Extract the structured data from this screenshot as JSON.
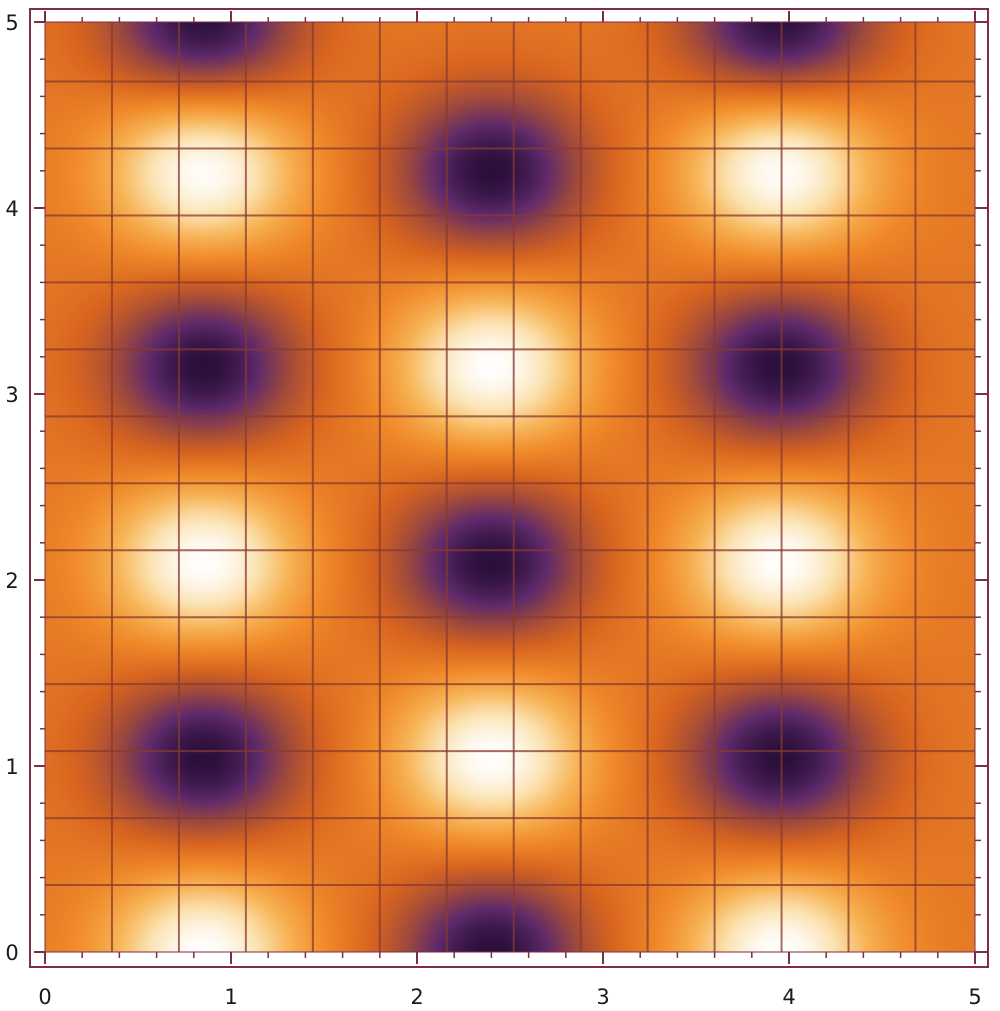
{
  "chart_data": {
    "type": "heatmap",
    "title": "",
    "xlabel": "",
    "ylabel": "",
    "xlim": [
      0,
      5
    ],
    "ylim": [
      0,
      5
    ],
    "x_ticks": [
      0,
      1,
      2,
      3,
      4,
      5
    ],
    "y_ticks": [
      0,
      1,
      2,
      3,
      4,
      5
    ],
    "x_tick_labels": [
      "0",
      "1",
      "2",
      "3",
      "4",
      "5"
    ],
    "y_tick_labels": [
      "0",
      "1",
      "2",
      "3",
      "4",
      "5"
    ],
    "x_minor_step": 0.2,
    "y_minor_step": 0.2,
    "grid": true,
    "grid_x_values": [
      0.36,
      0.72,
      1.08,
      1.44,
      1.8,
      2.16,
      2.52,
      2.88,
      3.24,
      3.6,
      3.96,
      4.32,
      4.68
    ],
    "grid_y_values": [
      0.36,
      0.72,
      1.08,
      1.44,
      1.8,
      2.16,
      2.52,
      2.88,
      3.24,
      3.6,
      3.96,
      4.32,
      4.68
    ],
    "colormap": [
      "#2a0f3a",
      "#5e2a6b",
      "#a04a3c",
      "#d8651f",
      "#f08a2a",
      "#f7b456",
      "#fbe2b0",
      "#ffffff"
    ],
    "value_range": [
      -1,
      1
    ],
    "peaks": [
      {
        "x": 0.85,
        "y": 0.0,
        "value": 1
      },
      {
        "x": 3.95,
        "y": 0.0,
        "value": 1
      },
      {
        "x": 2.4,
        "y": 1.05,
        "value": 1
      },
      {
        "x": 0.85,
        "y": 2.1,
        "value": 1
      },
      {
        "x": 3.95,
        "y": 2.1,
        "value": 1
      },
      {
        "x": 2.4,
        "y": 3.15,
        "value": 1
      },
      {
        "x": 0.85,
        "y": 4.2,
        "value": 1
      },
      {
        "x": 3.95,
        "y": 4.2,
        "value": 1
      }
    ],
    "troughs": [
      {
        "x": 2.4,
        "y": 0.0,
        "value": -1
      },
      {
        "x": 0.85,
        "y": 1.05,
        "value": -1
      },
      {
        "x": 3.95,
        "y": 1.05,
        "value": -1
      },
      {
        "x": 2.4,
        "y": 2.1,
        "value": -1
      },
      {
        "x": 0.85,
        "y": 3.15,
        "value": -1
      },
      {
        "x": 3.95,
        "y": 3.15,
        "value": -1
      },
      {
        "x": 2.4,
        "y": 4.2,
        "value": -1
      },
      {
        "x": 0.85,
        "y": 5.0,
        "value": -1
      },
      {
        "x": 3.95,
        "y": 5.0,
        "value": -1
      }
    ],
    "colors": {
      "frame": "#7a2f44",
      "grid": "#8a3a2e",
      "tick": "#7a2f44",
      "label": "#1a1a1a"
    }
  }
}
